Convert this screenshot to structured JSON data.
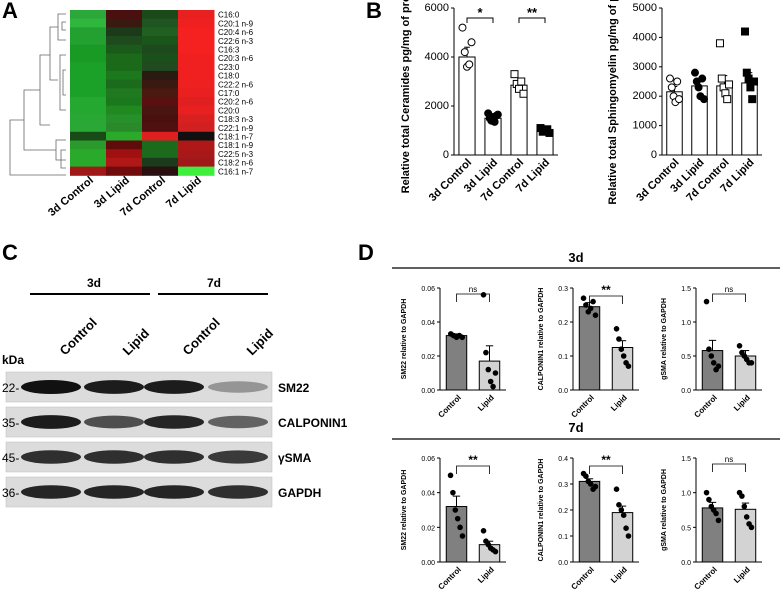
{
  "panels": {
    "A": "A",
    "B": "B",
    "C": "C",
    "D": "D"
  },
  "heatmap": {
    "lipids": [
      "C16:0",
      "C20:1 n-9",
      "C20:4 n-6",
      "C22:6 n-3",
      "C16:3",
      "C20:3 n-6",
      "C23:0",
      "C18:0",
      "C22:2 n-6",
      "C17:0",
      "C20:2 n-6",
      "C20:0",
      "C18:3 n-3",
      "C22:1 n-9",
      "C18:1 n-7",
      "C18:1 n-9",
      "C22:5 n-3",
      "C18:2 n-6",
      "C16:1 n-7"
    ],
    "columns": [
      "3d Control",
      "3d Lipid",
      "7d Control",
      "7d Lipid"
    ],
    "colors": [
      [
        "#2ca83a",
        "#4a1010",
        "#1a4a1a",
        "#e82020"
      ],
      [
        "#2fb73d",
        "#3a1a10",
        "#1f5520",
        "#f02020"
      ],
      [
        "#23a030",
        "#1a3a1a",
        "#206020",
        "#f52020"
      ],
      [
        "#23a030",
        "#1e4a1e",
        "#1a551a",
        "#f52020"
      ],
      [
        "#189a25",
        "#1a5a1a",
        "#1c4a1c",
        "#f52020"
      ],
      [
        "#189a25",
        "#1a6a1a",
        "#1a501a",
        "#f02020"
      ],
      [
        "#1ba028",
        "#1a6a1a",
        "#204a20",
        "#f02020"
      ],
      [
        "#1ba028",
        "#1c781c",
        "#2a1a10",
        "#f02020"
      ],
      [
        "#1ba028",
        "#1c6a1c",
        "#3a1a10",
        "#ee2020"
      ],
      [
        "#1ba028",
        "#207820",
        "#4a1a10",
        "#ea2020"
      ],
      [
        "#24a830",
        "#1c781c",
        "#5a1010",
        "#e02020"
      ],
      [
        "#24a830",
        "#208a20",
        "#4a1410",
        "#e82020"
      ],
      [
        "#2aa836",
        "#28902a",
        "#4a1010",
        "#d82020"
      ],
      [
        "#2aa836",
        "#2a8a2a",
        "#501010",
        "#d02020"
      ],
      [
        "#184a18",
        "#2aaa2a",
        "#e02020",
        "#101010"
      ],
      [
        "#2a9a2a",
        "#600c0c",
        "#1c6a1c",
        "#b01818"
      ],
      [
        "#2aaa2a",
        "#a01010",
        "#1c6a1c",
        "#a81818"
      ],
      [
        "#2aaa2a",
        "#b01818",
        "#1c3a1c",
        "#a01818"
      ],
      [
        "#a01818",
        "#700c0c",
        "#2a1010",
        "#40ee40"
      ]
    ]
  },
  "chart_data": [
    {
      "type": "bar",
      "panel": "B",
      "ylabel": "Relative total Ceramides pg/mg of proteins",
      "categories": [
        "3d Control",
        "3d Lipid",
        "7d Control",
        "7d Lipid"
      ],
      "values": [
        4000,
        1500,
        2850,
        1000
      ],
      "errors": [
        400,
        100,
        150,
        60
      ],
      "points": [
        [
          5200,
          4200,
          3600,
          3700,
          4600
        ],
        [
          1700,
          1500,
          1400,
          1550,
          1350,
          1600,
          1650
        ],
        [
          3300,
          2900,
          2700,
          3000,
          2500
        ],
        [
          1100,
          950,
          1000,
          1050,
          900
        ]
      ],
      "ylim": [
        0,
        6000
      ],
      "yticks": [
        "0",
        "2000",
        "4000",
        "6000"
      ],
      "significance": [
        "*",
        "**"
      ],
      "marker_styles": [
        "open-circle",
        "filled-circle",
        "open-square",
        "filled-square"
      ]
    },
    {
      "type": "bar",
      "panel": "B",
      "ylabel": "Relative total Sphingomyelin pg/mg of proteins",
      "categories": [
        "3d Control",
        "3d Lipid",
        "7d Control",
        "7d Lipid"
      ],
      "values": [
        2150,
        2350,
        2350,
        2450
      ],
      "errors": [
        180,
        250,
        350,
        350
      ],
      "points": [
        [
          2600,
          2300,
          2000,
          1800,
          2500,
          1900
        ],
        [
          2800,
          2500,
          2300,
          2000,
          2600,
          1900
        ],
        [
          3800,
          2600,
          2300,
          2100,
          1900,
          2400
        ],
        [
          4200,
          2800,
          2600,
          2300,
          1900,
          2500
        ]
      ],
      "ylim": [
        0,
        5000
      ],
      "yticks": [
        "0",
        "1000",
        "2000",
        "3000",
        "4000",
        "5000"
      ],
      "marker_styles": [
        "open-circle",
        "filled-circle",
        "open-square",
        "filled-square"
      ]
    },
    {
      "type": "bar",
      "panel": "D",
      "group": "3d",
      "ylabel": "SM22 relative to GAPDH",
      "categories": [
        "Control",
        "Lipid"
      ],
      "values": [
        0.032,
        0.017
      ],
      "errors": [
        0.001,
        0.009
      ],
      "points": [
        [
          0.033,
          0.032,
          0.031,
          0.032,
          0.031
        ],
        [
          0.056,
          0.022,
          0.012,
          0.005,
          0.002,
          0.01
        ]
      ],
      "ylim": [
        0,
        0.06
      ],
      "yticks": [
        "0.00",
        "0.02",
        "0.04",
        "0.06"
      ],
      "significance": "ns"
    },
    {
      "type": "bar",
      "panel": "D",
      "group": "3d",
      "ylabel": "CALPONIN1 relative to GAPDH",
      "categories": [
        "Control",
        "Lipid"
      ],
      "values": [
        0.245,
        0.125
      ],
      "errors": [
        0.012,
        0.02
      ],
      "points": [
        [
          0.27,
          0.25,
          0.23,
          0.24,
          0.26,
          0.22
        ],
        [
          0.18,
          0.15,
          0.12,
          0.1,
          0.08,
          0.07
        ]
      ],
      "ylim": [
        0,
        0.3
      ],
      "yticks": [
        "0.0",
        "0.1",
        "0.2",
        "0.3"
      ],
      "significance": "**"
    },
    {
      "type": "bar",
      "panel": "D",
      "group": "3d",
      "ylabel": "gSMA relative to GAPDH",
      "categories": [
        "Control",
        "Lipid"
      ],
      "values": [
        0.58,
        0.5
      ],
      "errors": [
        0.15,
        0.08
      ],
      "points": [
        [
          1.3,
          0.6,
          0.5,
          0.4,
          0.3,
          0.35
        ],
        [
          0.65,
          0.55,
          0.5,
          0.45,
          0.4,
          0.4
        ]
      ],
      "ylim": [
        0,
        1.5
      ],
      "yticks": [
        "0.0",
        "0.5",
        "1.0",
        "1.5"
      ],
      "significance": "ns"
    },
    {
      "type": "bar",
      "panel": "D",
      "group": "7d",
      "ylabel": "SM22 relative to GAPDH",
      "categories": [
        "Control",
        "Lipid"
      ],
      "values": [
        0.032,
        0.01
      ],
      "errors": [
        0.006,
        0.002
      ],
      "points": [
        [
          0.05,
          0.04,
          0.03,
          0.025,
          0.02,
          0.015
        ],
        [
          0.018,
          0.012,
          0.01,
          0.008,
          0.007,
          0.006
        ]
      ],
      "ylim": [
        0,
        0.06
      ],
      "yticks": [
        "0.00",
        "0.02",
        "0.04",
        "0.06"
      ],
      "significance": "**"
    },
    {
      "type": "bar",
      "panel": "D",
      "group": "7d",
      "ylabel": "CALPONIN1 relative to GAPDH",
      "categories": [
        "Control",
        "Lipid"
      ],
      "values": [
        0.31,
        0.19
      ],
      "errors": [
        0.01,
        0.025
      ],
      "points": [
        [
          0.34,
          0.33,
          0.31,
          0.3,
          0.28,
          0.29
        ],
        [
          0.28,
          0.22,
          0.2,
          0.18,
          0.13,
          0.1
        ]
      ],
      "ylim": [
        0,
        0.4
      ],
      "yticks": [
        "0.0",
        "0.1",
        "0.2",
        "0.3",
        "0.4"
      ],
      "significance": "**"
    },
    {
      "type": "bar",
      "panel": "D",
      "group": "7d",
      "ylabel": "gSMA relative to GAPDH",
      "categories": [
        "Control",
        "Lipid"
      ],
      "values": [
        0.78,
        0.76
      ],
      "errors": [
        0.08,
        0.09
      ],
      "points": [
        [
          1.0,
          0.9,
          0.8,
          0.75,
          0.7,
          0.6
        ],
        [
          1.0,
          0.95,
          0.8,
          0.65,
          0.55,
          0.5
        ]
      ],
      "ylim": [
        0,
        1.5
      ],
      "yticks": [
        "0.0",
        "0.5",
        "1.0",
        "1.5"
      ],
      "significance": "ns"
    }
  ],
  "western": {
    "groups": [
      "3d",
      "7d"
    ],
    "lanes": [
      "Control",
      "Lipid",
      "Control",
      "Lipid"
    ],
    "kda_label": "kDa",
    "rows": [
      {
        "kda": "22-",
        "protein": "SM22",
        "intensity": [
          1,
          0.95,
          0.95,
          0.35
        ]
      },
      {
        "kda": "35-",
        "protein": "CALPONIN1",
        "intensity": [
          0.95,
          0.7,
          0.9,
          0.6
        ]
      },
      {
        "kda": "45-",
        "protein": "γSMA",
        "intensity": [
          0.85,
          0.85,
          0.85,
          0.8
        ]
      },
      {
        "kda": "36-",
        "protein": "GAPDH",
        "intensity": [
          0.9,
          0.9,
          0.9,
          0.85
        ]
      }
    ]
  },
  "d_groups": [
    "3d",
    "7d"
  ]
}
